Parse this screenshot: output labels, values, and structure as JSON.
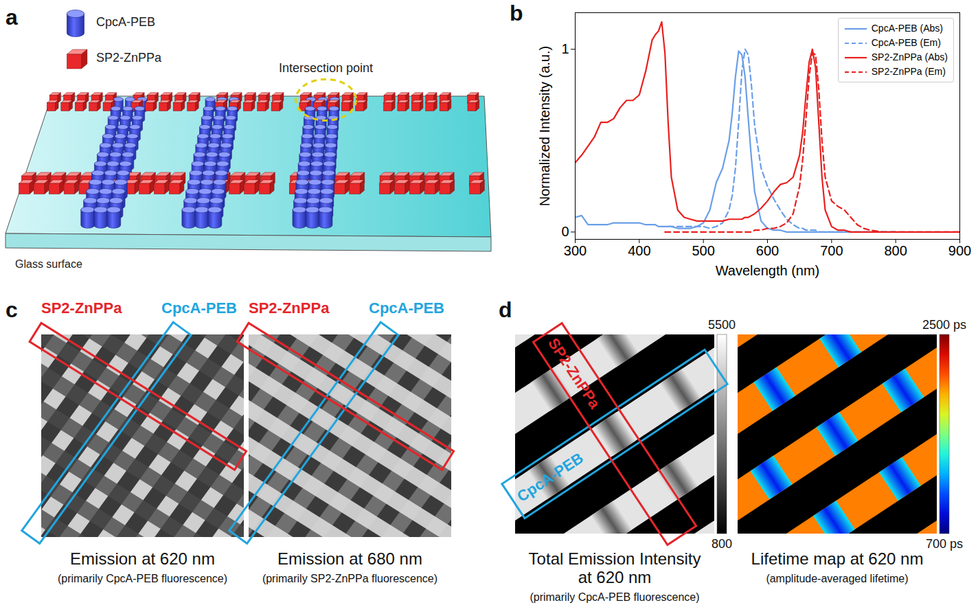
{
  "panel_labels": [
    "a",
    "b",
    "c",
    "d"
  ],
  "schematic": {
    "legend": [
      "CpcA-PEB",
      "SP2-ZnPPa"
    ],
    "colors": [
      "#3f4fe0",
      "#e02828"
    ],
    "annotation": "Intersection point",
    "surface": "Glass surface"
  },
  "chart_data": {
    "type": "line",
    "xlabel": "Wavelength (nm)",
    "ylabel": "Normalized Intensity (a.u.)",
    "x": [
      300,
      310,
      320,
      330,
      340,
      350,
      360,
      370,
      380,
      390,
      400,
      410,
      420,
      425,
      430,
      435,
      440,
      445,
      450,
      460,
      470,
      480,
      490,
      500,
      510,
      520,
      530,
      540,
      545,
      550,
      555,
      560,
      565,
      570,
      575,
      580,
      590,
      600,
      610,
      620,
      630,
      640,
      650,
      655,
      660,
      665,
      670,
      675,
      680,
      685,
      690,
      700,
      710,
      720,
      730,
      740,
      750,
      760,
      780,
      800,
      820,
      840,
      860,
      880,
      900
    ],
    "series": [
      {
        "name": "CpcA-PEB (Abs)",
        "color": "#6a9ee8",
        "line_style": "solid",
        "values": [
          0.08,
          0.09,
          0.04,
          0.04,
          0.04,
          0.04,
          0.05,
          0.05,
          0.05,
          0.05,
          0.05,
          0.04,
          0.04,
          0.04,
          0.03,
          0.03,
          0.03,
          0.03,
          0.03,
          0.02,
          0.02,
          0.02,
          0.03,
          0.05,
          0.12,
          0.27,
          0.35,
          0.5,
          0.65,
          0.85,
          0.99,
          0.97,
          0.85,
          0.62,
          0.4,
          0.22,
          0.06,
          0.02,
          0.01,
          0.01,
          0,
          0,
          0,
          0,
          0,
          0,
          0,
          0,
          0,
          0,
          0,
          0,
          0,
          0,
          0,
          0,
          0,
          0,
          0,
          0,
          null,
          null,
          null,
          null,
          null
        ]
      },
      {
        "name": "CpcA-PEB (Em)",
        "color": "#6a9ee8",
        "line_style": "dashed",
        "values": [
          null,
          null,
          null,
          null,
          null,
          null,
          null,
          null,
          null,
          null,
          null,
          null,
          null,
          null,
          null,
          null,
          null,
          0.03,
          0.03,
          0.03,
          0.03,
          0.03,
          0.03,
          0.03,
          0.02,
          0.03,
          0.05,
          0.12,
          0.2,
          0.35,
          0.6,
          0.88,
          1.0,
          0.97,
          0.8,
          0.58,
          0.35,
          0.25,
          0.18,
          0.12,
          0.07,
          0.04,
          0.02,
          0.02,
          0.01,
          0.01,
          0.01,
          0.01,
          0,
          0,
          0,
          0,
          0,
          0,
          0,
          0,
          0,
          0,
          0,
          0,
          null,
          null,
          null,
          null,
          null
        ]
      },
      {
        "name": "SP2-ZnPPa (Abs)",
        "color": "#e8201e",
        "line_style": "solid",
        "values": [
          0.38,
          0.42,
          0.47,
          0.52,
          0.6,
          0.6,
          0.62,
          0.68,
          0.72,
          0.72,
          0.75,
          0.88,
          1.05,
          1.08,
          1.1,
          1.15,
          0.98,
          0.6,
          0.3,
          0.12,
          0.08,
          0.07,
          0.06,
          0.06,
          0.06,
          0.06,
          0.06,
          0.07,
          0.07,
          0.07,
          0.07,
          0.07,
          0.08,
          0.08,
          0.09,
          0.1,
          0.13,
          0.17,
          0.22,
          0.26,
          0.27,
          0.3,
          0.42,
          0.55,
          0.75,
          0.93,
          1.0,
          0.9,
          0.6,
          0.3,
          0.12,
          0.03,
          0.01,
          0.01,
          0,
          0,
          0,
          0,
          0,
          0,
          0,
          0,
          0,
          0,
          0
        ]
      },
      {
        "name": "SP2-ZnPPa (Em)",
        "color": "#e8201e",
        "line_style": "dashed",
        "values": [
          null,
          null,
          null,
          null,
          null,
          null,
          null,
          null,
          null,
          null,
          null,
          null,
          null,
          null,
          null,
          null,
          0,
          0,
          0,
          0,
          0,
          0,
          0,
          0,
          0,
          0,
          0,
          0,
          0,
          0,
          0,
          0,
          0,
          0,
          0,
          0.01,
          0.01,
          0.02,
          0.02,
          0.03,
          0.05,
          0.1,
          0.25,
          0.4,
          0.62,
          0.85,
          0.98,
          0.97,
          0.78,
          0.5,
          0.3,
          0.17,
          0.14,
          0.12,
          0.08,
          0.04,
          0.02,
          0.01,
          0,
          0,
          0,
          0,
          0,
          0,
          0
        ]
      }
    ],
    "xlim": [
      300,
      900
    ],
    "xticks": [
      300,
      400,
      500,
      600,
      700,
      800,
      900
    ],
    "ylim": [
      -0.04,
      1.2
    ],
    "yticks": [
      0,
      1
    ],
    "grid": false,
    "legend": "upper right"
  },
  "emission_images": {
    "stripes": [
      "SP2-ZnPPa",
      "CpcA-PEB"
    ],
    "colors": [
      "#e3262b",
      "#22a5de"
    ],
    "images": [
      {
        "caption": "Emission at 620 nm",
        "note": "(primarily CpcA-PEB fluorescence)"
      },
      {
        "caption": "Emission at 680 nm",
        "note": "(primarily SP2-ZnPPa fluorescence)"
      }
    ]
  },
  "maps": {
    "stripes": [
      "SP2-ZnPPa",
      "CpcA-PEB"
    ],
    "colors": [
      "#e3262b",
      "#22a5de"
    ],
    "intensity": {
      "caption": [
        "Total Emission Intensity",
        "at 620 nm"
      ],
      "note": "(primarily CpcA-PEB fluorescence)",
      "range": [
        800,
        5500
      ],
      "ticks": [
        5500,
        800
      ],
      "cells": {
        "stripe": 5000,
        "intersection": 2400
      }
    },
    "lifetime": {
      "caption": [
        "Lifetime map at 620 nm"
      ],
      "note": "(amplitude-averaged lifetime)",
      "range": [
        700,
        2500
      ],
      "ticks": [
        {
          "value": 2500,
          "label": "2500 ps"
        },
        {
          "value": 700,
          "label": "700 ps"
        }
      ],
      "cells": {
        "stripe": 2050,
        "edge": 1350,
        "intersection": 950
      }
    }
  }
}
